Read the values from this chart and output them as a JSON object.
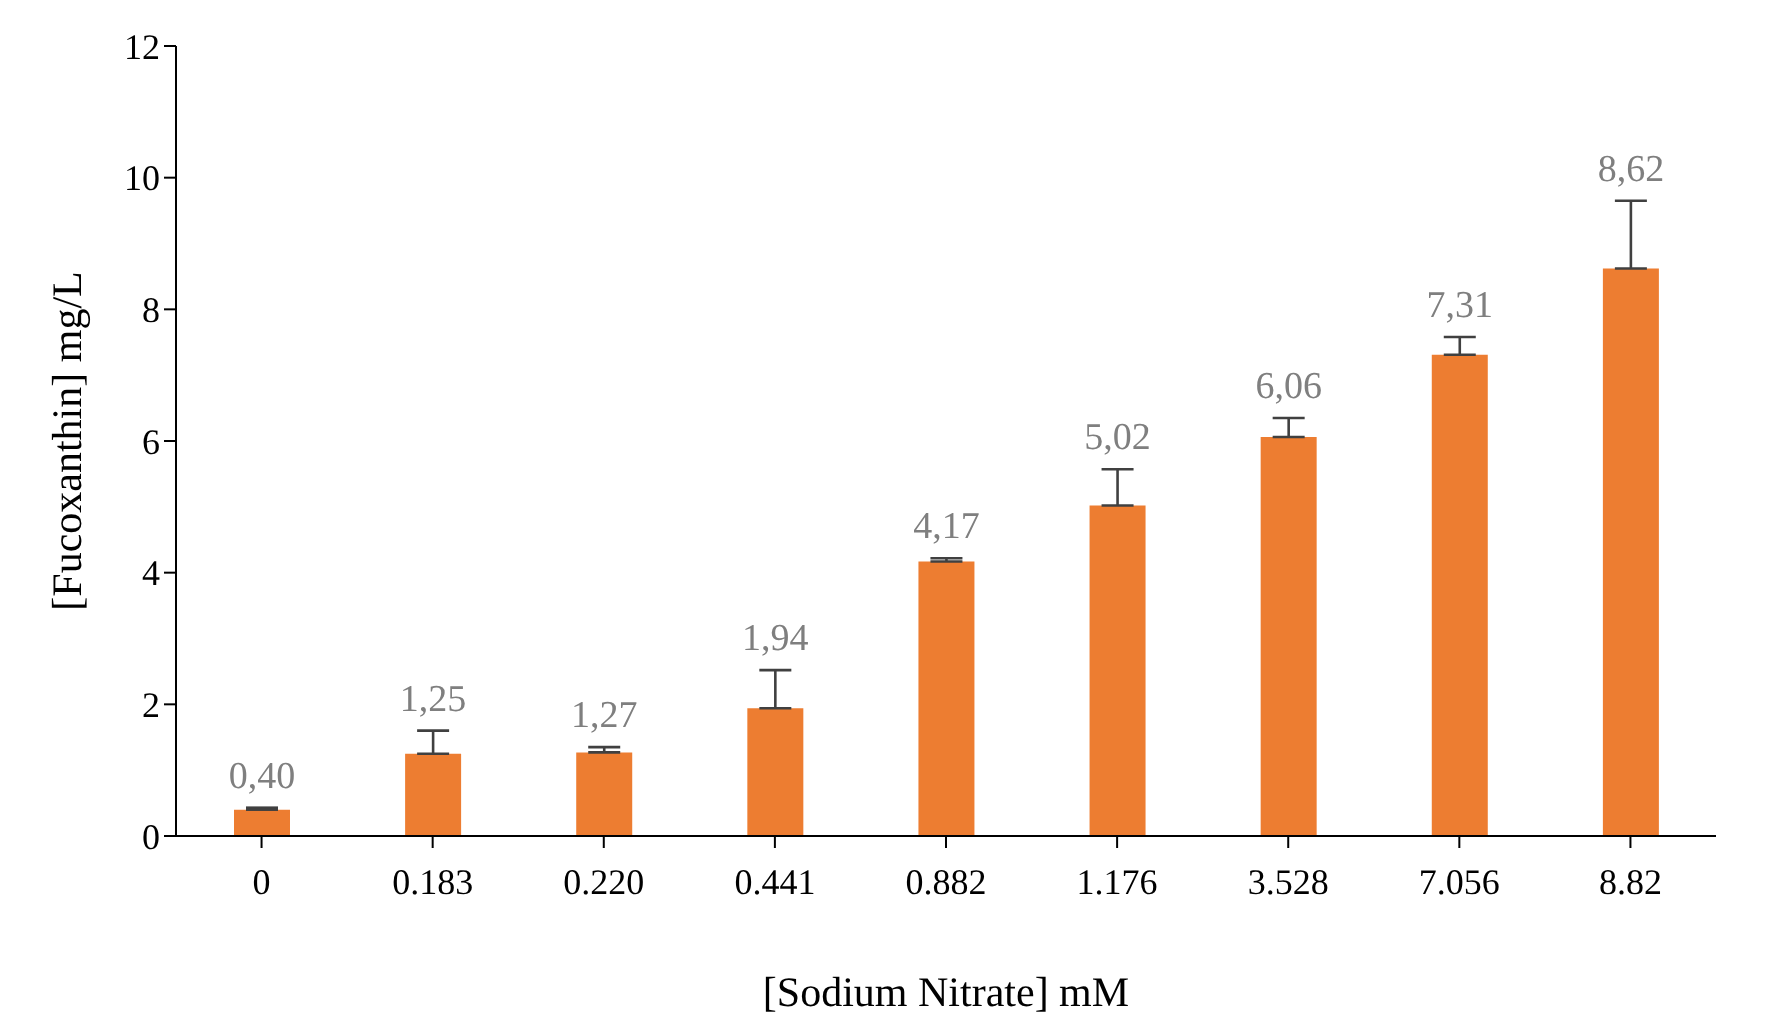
{
  "chart_data": {
    "type": "bar",
    "xlabel": "[Sodium Nitrate] mM",
    "ylabel": "[Fucoxanthin] mg/L",
    "categories": [
      "0",
      "0.183",
      "0.220",
      "0.441",
      "0.882",
      "1.176",
      "3.528",
      "7.056",
      "8.82"
    ],
    "values": [
      0.4,
      1.25,
      1.27,
      1.94,
      4.17,
      5.02,
      6.06,
      7.31,
      8.62
    ],
    "errors": [
      [
        0.4,
        0.43
      ],
      [
        1.25,
        1.6
      ],
      [
        1.27,
        1.35
      ],
      [
        1.94,
        2.52
      ],
      [
        4.17,
        4.22
      ],
      [
        5.02,
        5.57
      ],
      [
        6.06,
        6.35
      ],
      [
        7.31,
        7.58
      ],
      [
        8.62,
        9.65
      ]
    ],
    "value_labels": [
      "0,40",
      "1,25",
      "1,27",
      "1,94",
      "4,17",
      "5,02",
      "6,06",
      "7,31",
      "8,62"
    ],
    "color": "#ed7d31",
    "ylim": [
      0,
      12
    ],
    "yticks": [
      0,
      2,
      4,
      6,
      8,
      10,
      12
    ],
    "grid": false
  }
}
